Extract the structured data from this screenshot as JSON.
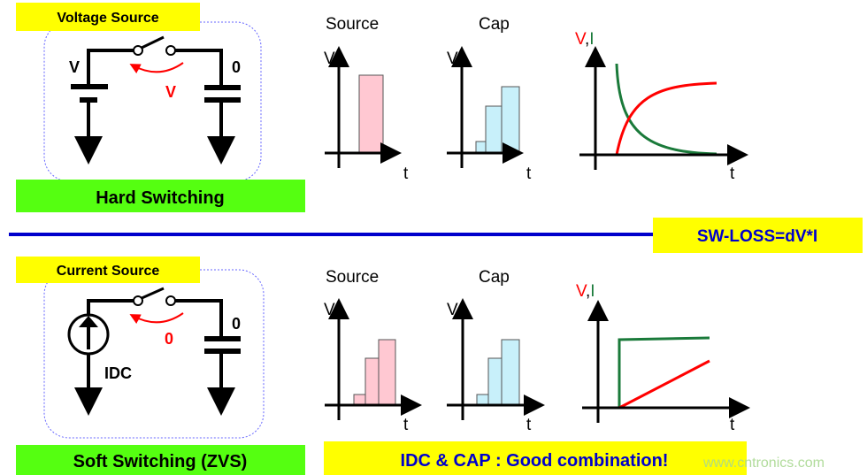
{
  "top": {
    "source_label": "Voltage Source",
    "mode_label": "Hard Switching",
    "left_node": "V",
    "right_node": "0",
    "transfer_label": "V",
    "charts": {
      "source_title": "Source",
      "cap_title": "Cap",
      "v_axis": "V",
      "t_axis": "t",
      "vi_v": "V",
      "vi_comma": ",",
      "vi_i": "I"
    }
  },
  "divider": {
    "label": "SW-LOSS=dV*I"
  },
  "bottom": {
    "source_label": "Current Source",
    "mode_label": "Soft Switching (ZVS)",
    "source_name": "IDC",
    "right_node": "0",
    "transfer_label": "0",
    "charts": {
      "source_title": "Source",
      "cap_title": "Cap",
      "v_axis": "V",
      "t_axis": "t",
      "vi_v": "V",
      "vi_comma": ",",
      "vi_i": "I"
    },
    "conclusion": "IDC & CAP : Good combination!"
  },
  "watermark": "www.cntronics.com",
  "colors": {
    "yellow": "#ffff00",
    "green": "#55ff11",
    "blue": "#0000cc",
    "red": "#ff0000",
    "curve_green": "#1a7a3a",
    "pink": "#ffc8d2",
    "cyan": "#c8f0fa"
  }
}
